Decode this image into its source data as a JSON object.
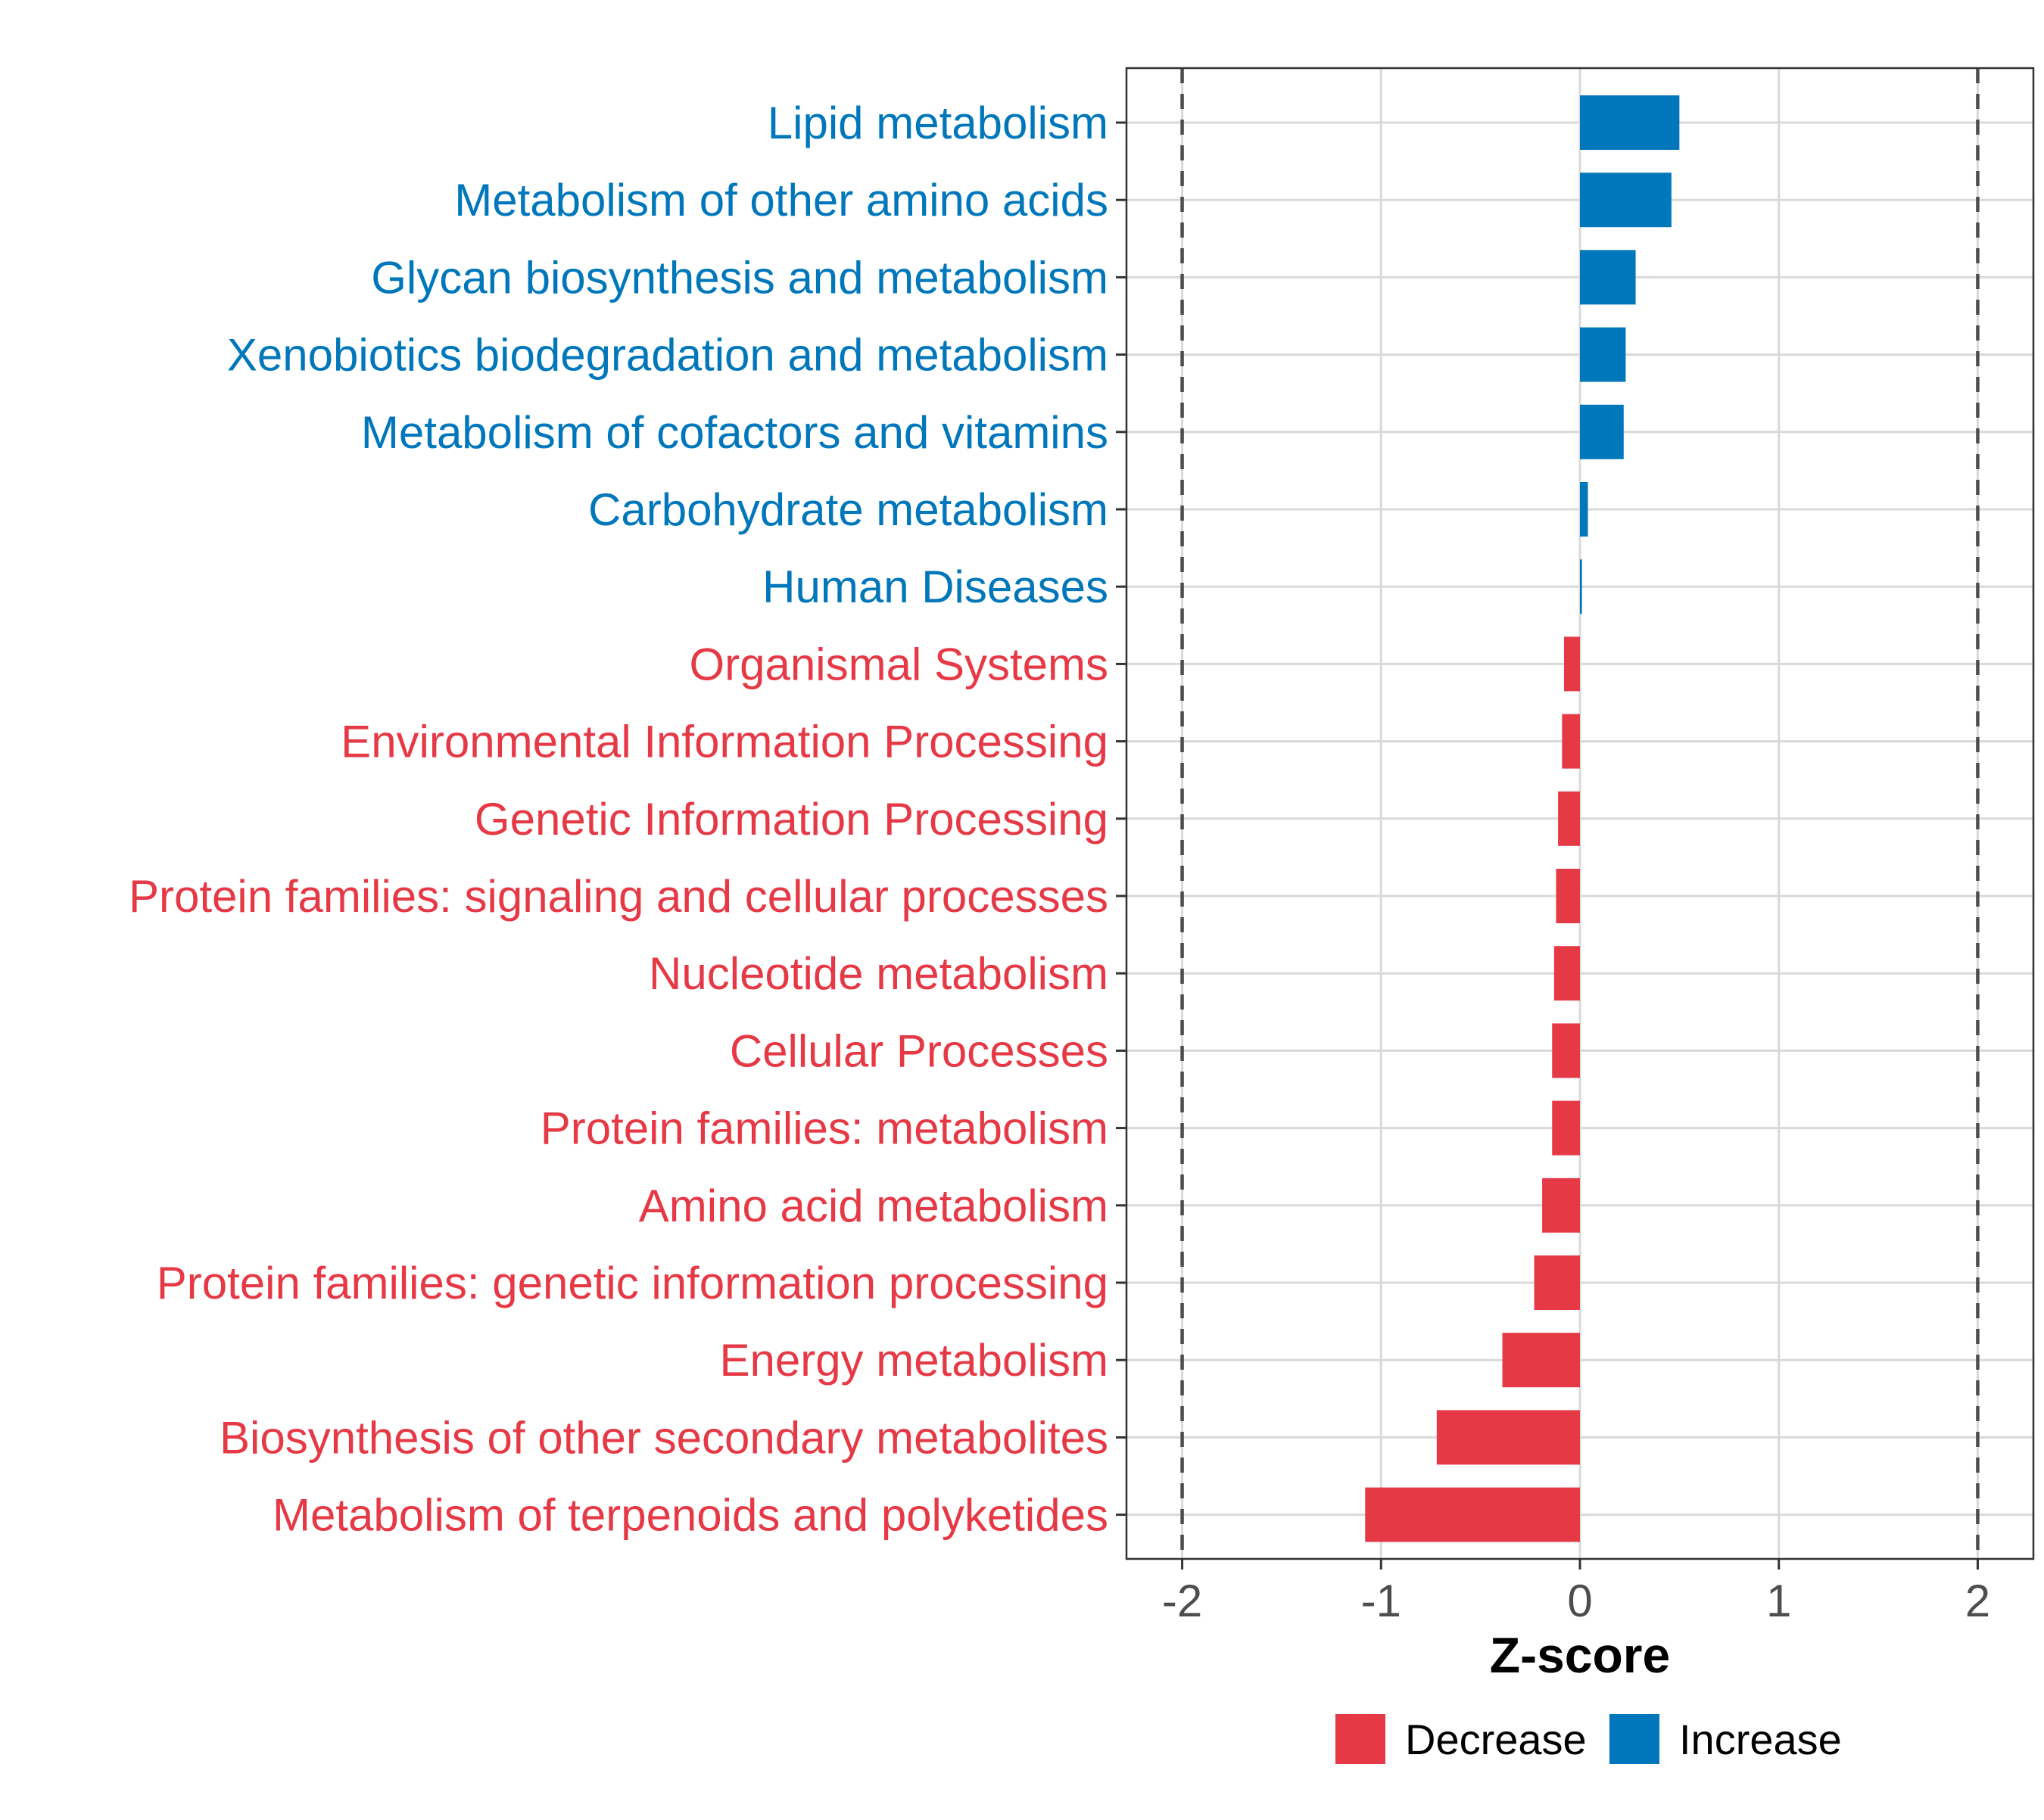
{
  "chart_data": {
    "type": "bar",
    "orientation": "horizontal",
    "title": "",
    "xlabel": "Z-score",
    "ylabel": "",
    "xlim": [
      -2.28,
      2.28
    ],
    "xticks": [
      -2,
      -1,
      0,
      1,
      2
    ],
    "xtick_labels": [
      "-2",
      "-1",
      "0",
      "1",
      "2"
    ],
    "reference_lines": [
      -2,
      2
    ],
    "grid": true,
    "categories": [
      "Lipid metabolism",
      "Metabolism of other amino acids",
      "Glycan biosynthesis and metabolism",
      "Xenobiotics biodegradation and metabolism",
      "Metabolism of cofactors and vitamins",
      "Carbohydrate metabolism",
      "Human Diseases",
      "Organismal Systems",
      "Environmental Information Processing",
      "Genetic Information Processing",
      "Protein families: signaling and cellular processes",
      "Nucleotide metabolism",
      "Cellular Processes",
      "Protein families: metabolism",
      "Amino acid metabolism",
      "Protein families: genetic information processing",
      "Energy metabolism",
      "Biosynthesis of other secondary metabolites",
      "Metabolism of terpenoids and polyketides"
    ],
    "values": [
      0.5,
      0.46,
      0.28,
      0.23,
      0.22,
      0.04,
      0.01,
      -0.08,
      -0.09,
      -0.11,
      -0.12,
      -0.13,
      -0.14,
      -0.14,
      -0.19,
      -0.23,
      -0.39,
      -0.72,
      -1.08
    ],
    "groups": [
      "Increase",
      "Increase",
      "Increase",
      "Increase",
      "Increase",
      "Increase",
      "Increase",
      "Decrease",
      "Decrease",
      "Decrease",
      "Decrease",
      "Decrease",
      "Decrease",
      "Decrease",
      "Decrease",
      "Decrease",
      "Decrease",
      "Decrease",
      "Decrease"
    ],
    "legend": {
      "position": "bottom",
      "entries": [
        {
          "label": "Decrease",
          "color": "#e63946"
        },
        {
          "label": "Increase",
          "color": "#0077bb"
        }
      ]
    },
    "colors": {
      "Decrease": "#e63946",
      "Increase": "#0077bb"
    }
  }
}
